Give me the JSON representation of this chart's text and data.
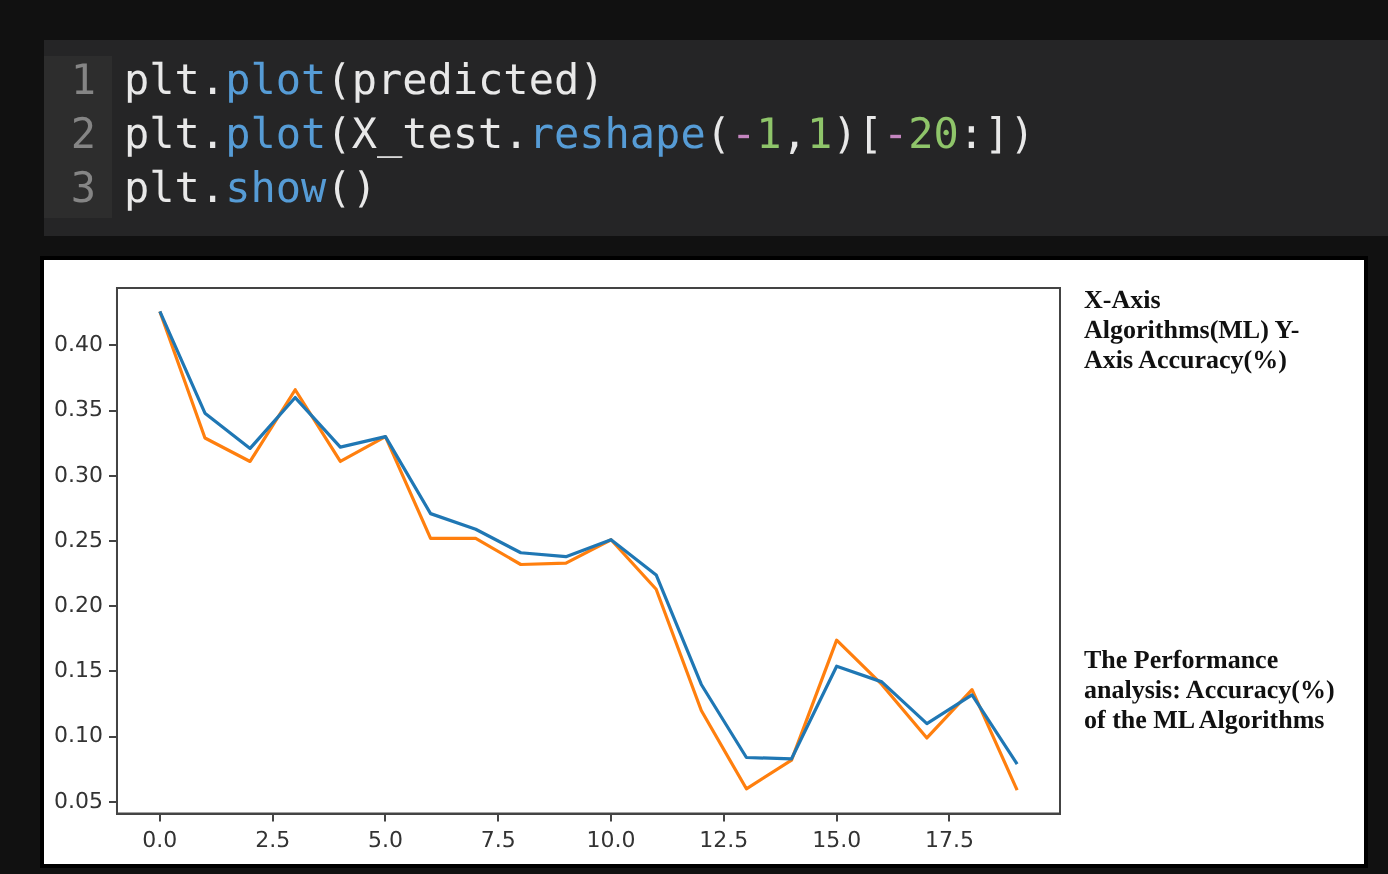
{
  "chart_data": {
    "type": "line",
    "x": [
      0,
      1,
      2,
      3,
      4,
      5,
      6,
      7,
      8,
      9,
      10,
      11,
      12,
      13,
      14,
      15,
      16,
      17,
      18,
      19
    ],
    "series": [
      {
        "color": "#1f77b4",
        "values": [
          0.426,
          0.348,
          0.321,
          0.36,
          0.322,
          0.33,
          0.271,
          0.259,
          0.241,
          0.238,
          0.251,
          0.224,
          0.14,
          0.084,
          0.083,
          0.154,
          0.142,
          0.11,
          0.132,
          0.079
        ]
      },
      {
        "color": "#ff7f0e",
        "values": [
          0.426,
          0.329,
          0.311,
          0.366,
          0.311,
          0.33,
          0.252,
          0.252,
          0.232,
          0.233,
          0.251,
          0.213,
          0.12,
          0.06,
          0.082,
          0.174,
          0.14,
          0.099,
          0.136,
          0.059
        ]
      }
    ],
    "xlim": [
      -0.95,
      19.95
    ],
    "xticks": [
      {
        "value": 0,
        "label": "0.0"
      },
      {
        "value": 2.5,
        "label": "2.5"
      },
      {
        "value": 5,
        "label": "5.0"
      },
      {
        "value": 7.5,
        "label": "7.5"
      },
      {
        "value": 10,
        "label": "10.0"
      },
      {
        "value": 12.5,
        "label": "12.5"
      },
      {
        "value": 15,
        "label": "15.0"
      },
      {
        "value": 17.5,
        "label": "17.5"
      }
    ],
    "ylim": [
      0.041,
      0.444
    ],
    "yticks": [
      {
        "value": 0.05,
        "label": "0.05"
      },
      {
        "value": 0.1,
        "label": "0.10"
      },
      {
        "value": 0.15,
        "label": "0.15"
      },
      {
        "value": 0.2,
        "label": "0.20"
      },
      {
        "value": 0.25,
        "label": "0.25"
      },
      {
        "value": 0.3,
        "label": "0.30"
      },
      {
        "value": 0.35,
        "label": "0.35"
      },
      {
        "value": 0.4,
        "label": "0.40"
      }
    ],
    "grid": false,
    "legend": false,
    "marker": "none",
    "line_style": "solid",
    "annotations": [
      "1 plt.plot(predicted)",
      "2 plt.plot(X_test.reshape(-1,1)[-20:])",
      "3 plt.show()",
      "X-Axis Algorithms(ML) Y-Axis Accuracy(%)",
      "The Performance analysis: Accuracy(%) of the ML Algorithms"
    ]
  }
}
